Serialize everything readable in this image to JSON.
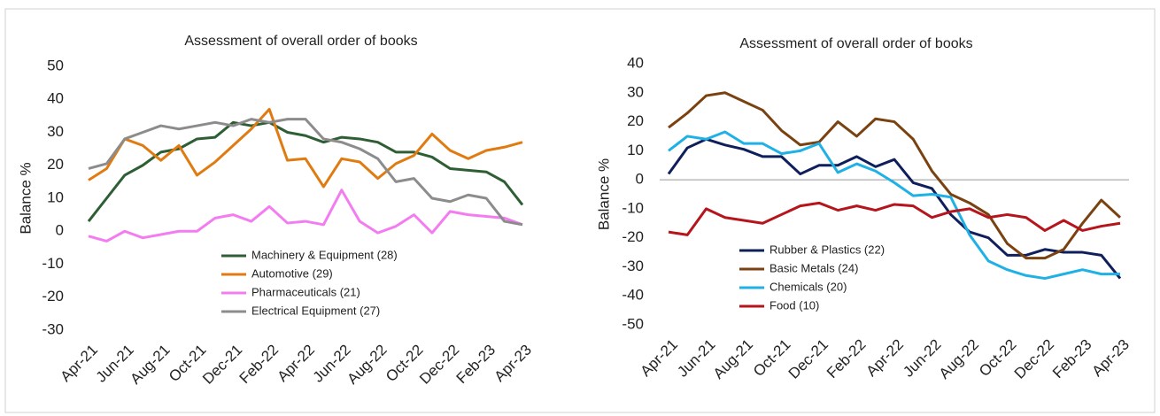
{
  "chart_data": [
    {
      "type": "line",
      "title": "Assessment of overall order of books",
      "y_label": "Balance %",
      "categories": [
        "Apr-21",
        null,
        "Jun-21",
        null,
        "Aug-21",
        null,
        "Oct-21",
        null,
        "Dec-21",
        null,
        "Feb-22",
        null,
        "Apr-22",
        null,
        "Jun-22",
        null,
        "Aug-22",
        null,
        "Oct-22",
        null,
        "Dec-22",
        null,
        "Feb-23",
        null,
        "Apr-23"
      ],
      "ylim": [
        -30,
        50
      ],
      "yticks": [
        -30,
        -20,
        -10,
        0,
        10,
        20,
        30,
        40,
        50
      ],
      "zero_line": false,
      "legend": "lower center",
      "series": [
        {
          "name": "Machinery & Equipment (28)",
          "color": "#2e5e34",
          "values": [
            3,
            10,
            17,
            20,
            24,
            25,
            28,
            28.5,
            33,
            32,
            33,
            30,
            29,
            27,
            28.5,
            28,
            27,
            24,
            24,
            22.5,
            19,
            18.5,
            18,
            15,
            8
          ]
        },
        {
          "name": "Automotive (29)",
          "color": "#e07b12",
          "values": [
            15.5,
            19,
            28,
            26,
            21.5,
            26,
            17,
            21,
            26,
            31,
            37,
            21.5,
            22,
            13.5,
            22,
            21,
            16,
            20.5,
            23,
            29.5,
            24.5,
            22,
            24.5,
            25.5,
            27
          ]
        },
        {
          "name": "Pharmaceuticals (21)",
          "color": "#f27cf0",
          "values": [
            -1.5,
            -3,
            0,
            -2,
            -1,
            0,
            0,
            4,
            5,
            3,
            7.5,
            2.5,
            3,
            2,
            12.5,
            3,
            -0.5,
            1.5,
            5,
            -0.5,
            6,
            5,
            4.5,
            4,
            2
          ]
        },
        {
          "name": "Electrical Equipment (27)",
          "color": "#8c8c8c",
          "values": [
            19,
            20.5,
            28,
            30,
            32,
            31,
            32,
            33,
            32,
            34,
            33,
            34,
            34,
            28,
            27,
            25,
            22,
            15,
            16,
            10,
            9,
            11,
            10,
            3,
            2
          ]
        }
      ]
    },
    {
      "type": "line",
      "title": "Assessment of overall order of books",
      "y_label": "Balance %",
      "categories": [
        "Apr-21",
        null,
        "Jun-21",
        null,
        "Aug-21",
        null,
        "Oct-21",
        null,
        "Dec-21",
        null,
        "Feb-22",
        null,
        "Apr-22",
        null,
        "Jun-22",
        null,
        "Aug-22",
        null,
        "Oct-22",
        null,
        "Dec-22",
        null,
        "Feb-23",
        null,
        "Apr-23"
      ],
      "ylim": [
        -50,
        40
      ],
      "yticks": [
        -50,
        -40,
        -30,
        -20,
        -10,
        0,
        10,
        20,
        30,
        40
      ],
      "zero_line": true,
      "legend": "lower left",
      "series": [
        {
          "name": "Rubber & Plastics (22)",
          "color": "#0f1f5c",
          "values": [
            2,
            11,
            14,
            12,
            10.5,
            8,
            8,
            2,
            5,
            5,
            8,
            4.5,
            7,
            -1,
            -3,
            -12,
            -18,
            -20,
            -26,
            -26,
            -24,
            -25,
            -25,
            -26,
            -34
          ]
        },
        {
          "name": "Basic Metals (24)",
          "color": "#7a4210",
          "values": [
            18,
            23,
            29,
            30,
            27,
            24,
            17,
            12,
            13,
            20,
            15,
            21,
            20,
            14,
            3,
            -5,
            -8,
            -12,
            -22,
            -27,
            -27,
            -24,
            -15,
            -7,
            -13
          ]
        },
        {
          "name": "Chemicals (20)",
          "color": "#1fb0e6",
          "values": [
            10,
            15,
            14,
            16.5,
            12.5,
            12.5,
            9,
            10,
            12.5,
            2.5,
            5.5,
            3,
            -1,
            -5.5,
            -5,
            -6,
            -19,
            -28,
            -31,
            -33,
            -34,
            -32.5,
            -31,
            -32.5,
            -32.5
          ]
        },
        {
          "name": "Food (10)",
          "color": "#b5151b",
          "values": [
            -18,
            -19,
            -10,
            -13,
            -14,
            -15,
            -12,
            -9,
            -8,
            -10.5,
            -9,
            -10.5,
            -8.5,
            -9,
            -13,
            -11,
            -10,
            -13,
            -12,
            -13,
            -17.5,
            -14,
            -17.5,
            -16,
            -15
          ]
        }
      ]
    }
  ]
}
